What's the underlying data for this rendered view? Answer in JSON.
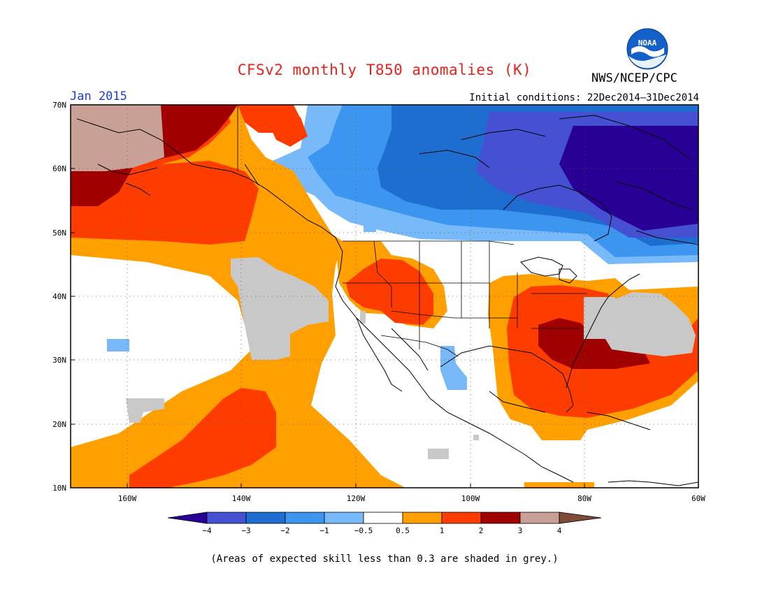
{
  "header": {
    "title": "CFSv2 monthly T850 anomalies (K)",
    "agency": "NWS/NCEP/CPC",
    "logo_text": "NOAA",
    "month": "Jan 2015",
    "initial_conditions": "Initial conditions: 22Dec2014–31Dec2014"
  },
  "map": {
    "lon_range": [
      -170,
      -60
    ],
    "lat_range": [
      10,
      70
    ],
    "lon_ticks": [
      {
        "lon": -160,
        "label": "160W"
      },
      {
        "lon": -140,
        "label": "140W"
      },
      {
        "lon": -120,
        "label": "120W"
      },
      {
        "lon": -100,
        "label": "100W"
      },
      {
        "lon": -80,
        "label": "80W"
      },
      {
        "lon": -60,
        "label": "60W"
      }
    ],
    "lat_ticks": [
      {
        "lat": 70,
        "label": "70N"
      },
      {
        "lat": 60,
        "label": "60N"
      },
      {
        "lat": 50,
        "label": "50N"
      },
      {
        "lat": 40,
        "label": "40N"
      },
      {
        "lat": 30,
        "label": "30N"
      },
      {
        "lat": 20,
        "label": "20N"
      },
      {
        "lat": 10,
        "label": "10N"
      }
    ],
    "colors": {
      "n4": "#280096",
      "n3": "#4650d2",
      "n2": "#1e6ed2",
      "n1": "#3c96f0",
      "n05": "#78b9fa",
      "zero": "#ffffff",
      "p05": "#ffa000",
      "p1": "#ff3c00",
      "p2": "#a00000",
      "p3": "#c8a096",
      "p4": "#7d4b37",
      "grey": "#c8c8c8"
    }
  },
  "colorbar": {
    "labels": [
      "−4",
      "−3",
      "−2",
      "−1",
      "−0.5",
      "0.5",
      "1",
      "2",
      "3",
      "4"
    ],
    "colors": [
      "#280096",
      "#4650d2",
      "#1e6ed2",
      "#3c96f0",
      "#78b9fa",
      "#ffffff",
      "#ffa000",
      "#ff3c00",
      "#a00000",
      "#c8a096",
      "#7d4b37"
    ]
  },
  "footer": {
    "note": "(Areas of expected skill less than 0.3 are shaded in grey.)"
  }
}
